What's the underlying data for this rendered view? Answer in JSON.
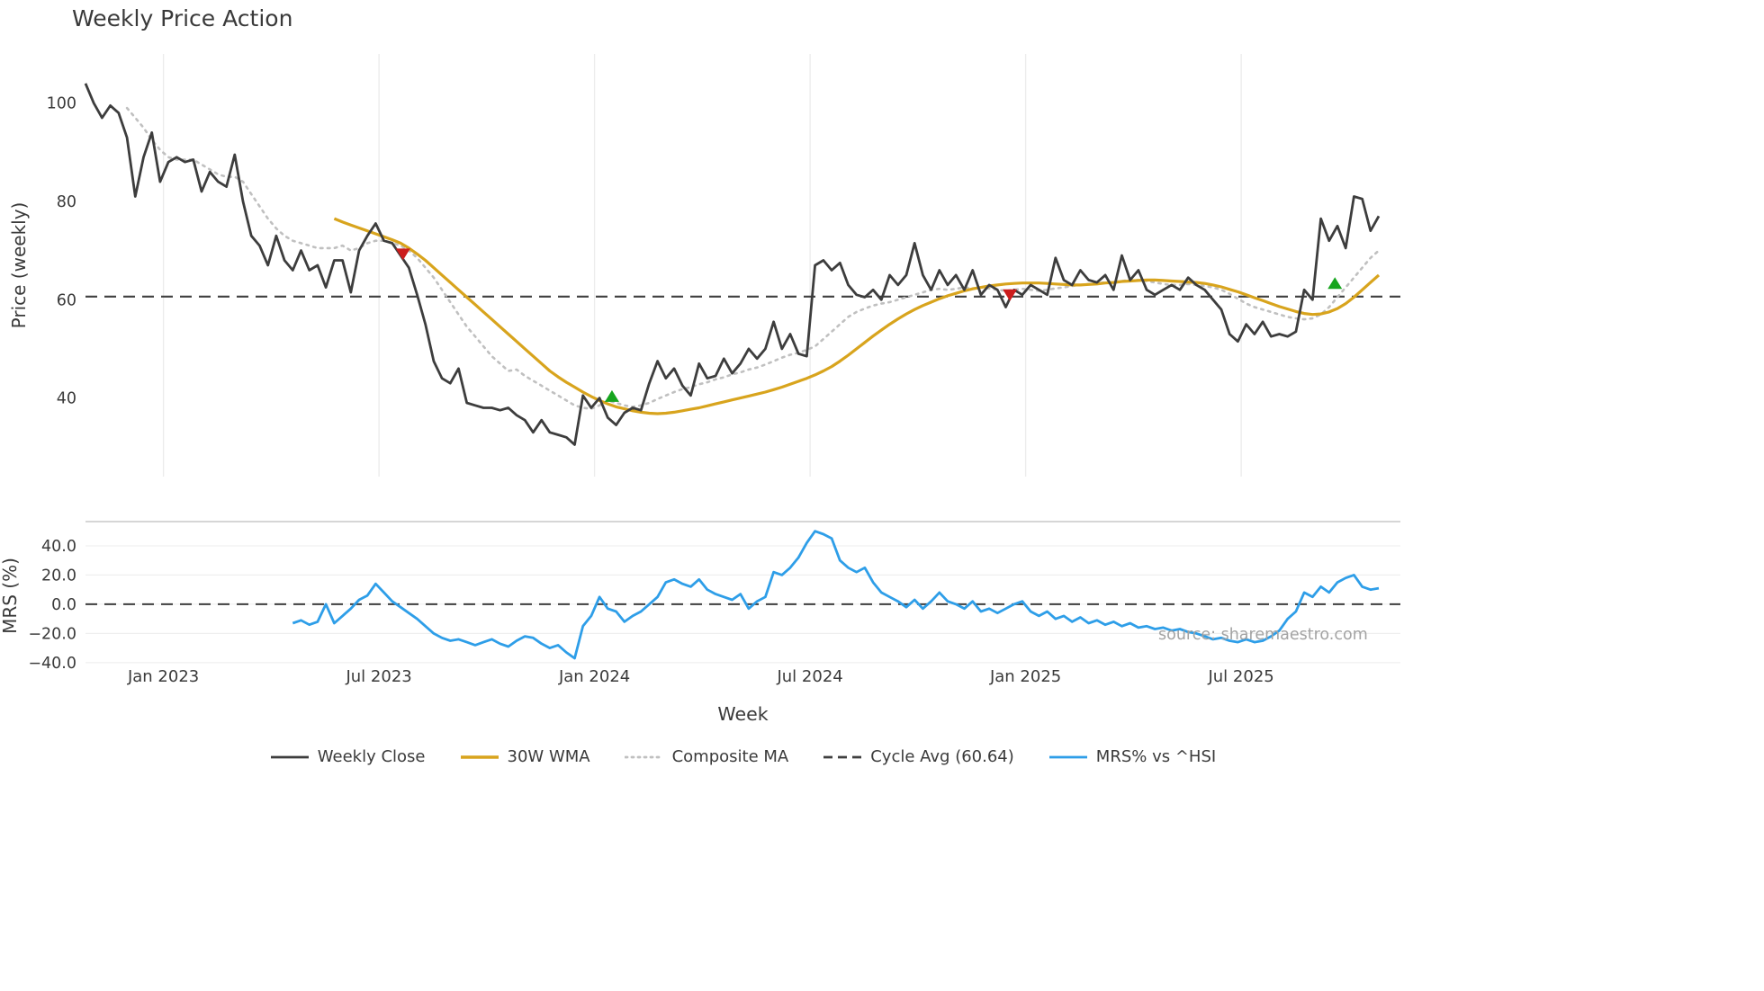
{
  "chart_data": {
    "type": "line",
    "title": "Weekly Price Action",
    "xlabel": "Week",
    "source": "source: sharemaestro.com",
    "xlim": [
      0,
      158.6
    ],
    "x_ticks": [
      {
        "week": 9.4,
        "label": "Jan 2023"
      },
      {
        "week": 35.4,
        "label": "Jul 2023"
      },
      {
        "week": 61.4,
        "label": "Jan 2024"
      },
      {
        "week": 87.4,
        "label": "Jul 2024"
      },
      {
        "week": 113.4,
        "label": "Jan 2025"
      },
      {
        "week": 139.4,
        "label": "Jul 2025"
      }
    ],
    "colors": {
      "close": "#3d3d3d",
      "wma": "#d8a41d",
      "composite": "#c0c0c0",
      "cycle": "#3f3f3f",
      "mrs": "#2e9ee8",
      "buy": "#16a51e",
      "sell": "#cc1c1c",
      "grid": "#ececec",
      "border": "#c9c9c9",
      "text": "#3a3a3a",
      "watermark": "#a3a3a3"
    },
    "price_panel": {
      "ylabel": "Price (weekly)",
      "ylim": [
        24,
        110
      ],
      "yticks": [
        100,
        80,
        60,
        40
      ],
      "cycle_avg": 60.64,
      "series": [
        {
          "name": "Composite MA",
          "key": "composite-ma-line",
          "style": "dotted",
          "color": "#c0c0c0",
          "width": 2.6,
          "start_week": 5,
          "values": [
            99,
            97,
            95,
            92.5,
            90.5,
            89,
            88.5,
            88.5,
            88.5,
            87.5,
            86.5,
            85.5,
            85,
            85,
            84,
            81.5,
            79,
            76.5,
            74.5,
            73,
            72,
            71.5,
            71,
            70.5,
            70.5,
            70.5,
            71,
            70,
            70.5,
            71.5,
            72,
            72,
            71.5,
            71,
            70,
            68.5,
            66.5,
            64.5,
            62,
            59.5,
            57,
            54.5,
            52.5,
            50.5,
            48.5,
            47,
            45.5,
            45.8,
            44.5,
            43.5,
            42.5,
            41.5,
            40.5,
            39.5,
            38.5,
            38,
            37.8,
            38.5,
            39.5,
            39,
            38.5,
            38.2,
            38.5,
            39,
            39.8,
            40.5,
            41.2,
            41.8,
            42.2,
            42.8,
            43.2,
            43.8,
            44.2,
            44.8,
            45.2,
            45.8,
            46.2,
            46.8,
            47.5,
            48.2,
            48.8,
            49.2,
            49.8,
            50.5,
            52,
            53.5,
            55,
            56.5,
            57.5,
            58.2,
            58.8,
            59.2,
            59.5,
            60,
            60.5,
            61,
            61.5,
            62,
            62.2,
            62,
            62.2,
            62.5,
            62.3,
            62.5,
            62.3,
            62,
            61.8,
            62,
            62.2,
            62,
            61.8,
            62,
            62.3,
            62.5,
            62.8,
            63,
            63.2,
            63.4,
            63.5,
            63.6,
            63.8,
            64,
            64,
            63.8,
            63.5,
            63.2,
            63,
            63,
            63.2,
            63,
            62.8,
            62.5,
            62,
            61.2,
            60.2,
            59.2,
            58.5,
            58,
            57.5,
            57,
            56.5,
            56.2,
            56,
            56.2,
            57,
            58.5,
            60.5,
            62.5,
            64.5,
            66.5,
            68.5,
            70
          ]
        },
        {
          "name": "30W WMA",
          "key": "wma-line",
          "style": "solid",
          "color": "#d8a41d",
          "width": 3.2,
          "start_week": 30,
          "values": [
            76.5,
            75.8,
            75.2,
            74.6,
            74,
            73.4,
            72.8,
            72.2,
            71.5,
            70.5,
            69.3,
            68,
            66.5,
            65,
            63.5,
            62,
            60.5,
            59,
            57.5,
            56,
            54.5,
            53,
            51.5,
            50,
            48.5,
            47,
            45.5,
            44.3,
            43.2,
            42.2,
            41.2,
            40.3,
            39.5,
            38.8,
            38.2,
            37.8,
            37.4,
            37.1,
            36.9,
            36.8,
            36.9,
            37.1,
            37.4,
            37.7,
            38,
            38.4,
            38.8,
            39.2,
            39.6,
            40,
            40.4,
            40.8,
            41.2,
            41.7,
            42.2,
            42.8,
            43.4,
            44,
            44.7,
            45.5,
            46.4,
            47.5,
            48.7,
            50,
            51.3,
            52.6,
            53.8,
            55,
            56.1,
            57.1,
            58,
            58.8,
            59.5,
            60.2,
            60.8,
            61.3,
            61.8,
            62.2,
            62.5,
            62.8,
            63,
            63.2,
            63.3,
            63.4,
            63.4,
            63.4,
            63.3,
            63.2,
            63.1,
            63,
            63,
            63.1,
            63.2,
            63.4,
            63.5,
            63.7,
            63.8,
            63.9,
            64,
            64,
            63.9,
            63.8,
            63.7,
            63.6,
            63.5,
            63.3,
            63,
            62.6,
            62.1,
            61.6,
            61,
            60.4,
            59.8,
            59.2,
            58.6,
            58.1,
            57.6,
            57.2,
            57,
            57.1,
            57.5,
            58.2,
            59.2,
            60.5,
            62,
            63.5,
            65
          ]
        },
        {
          "name": "Weekly Close",
          "key": "weekly-close-line",
          "style": "solid",
          "color": "#3d3d3d",
          "width": 2.8,
          "start_week": 0,
          "values": [
            104,
            100,
            97,
            99.5,
            98,
            93,
            81,
            89,
            94,
            84,
            88,
            89,
            88,
            88.5,
            82,
            86,
            84,
            83,
            89.5,
            80,
            73,
            71,
            67,
            73,
            68,
            66,
            70,
            66,
            67,
            62.5,
            68,
            68,
            61.5,
            70,
            73,
            75.5,
            72,
            71.5,
            69,
            66.5,
            61,
            55,
            47.5,
            44,
            43,
            46,
            39,
            38.5,
            38,
            38,
            37.5,
            38,
            36.5,
            35.5,
            33,
            35.5,
            33,
            32.5,
            32,
            30.5,
            40.5,
            38,
            40,
            36,
            34.5,
            37,
            38,
            37.5,
            43,
            47.5,
            44,
            46,
            42.5,
            40.5,
            47,
            44,
            44.5,
            48,
            45,
            47,
            50,
            48,
            50,
            55.5,
            50,
            53,
            49,
            48.5,
            67,
            68,
            66,
            67.5,
            63,
            61,
            60.5,
            62,
            60,
            65,
            63,
            65,
            71.5,
            65,
            62,
            66,
            63,
            65,
            62,
            66,
            61,
            63,
            62,
            58.5,
            62,
            61,
            63,
            62,
            61,
            68.5,
            64,
            63,
            66,
            64,
            63.5,
            65,
            62,
            69,
            64,
            66,
            62,
            61,
            62,
            63,
            62,
            64.5,
            63,
            62,
            60,
            58,
            53,
            51.5,
            55,
            53,
            55.5,
            52.5,
            53,
            52.5,
            53.5,
            62,
            60,
            76.5,
            72,
            75,
            70.5,
            81,
            80.5,
            74,
            77
          ]
        }
      ],
      "buy_signals": [
        {
          "week": 63.5,
          "price": 40.3
        },
        {
          "week": 150.7,
          "price": 63.3
        }
      ],
      "sell_signals": [
        {
          "week": 38.3,
          "price": 69.3
        },
        {
          "week": 111.5,
          "price": 61
        }
      ]
    },
    "mrs_panel": {
      "ylabel": "MRS (%)",
      "ylim": [
        -45,
        56.6
      ],
      "yticks": [
        40,
        20,
        0,
        -20,
        -40
      ],
      "ytick_labels": [
        "40.0",
        "20.0",
        "0.0",
        "−20.0",
        "−40.0"
      ],
      "zero_line": 0,
      "series": [
        {
          "name": "MRS% vs ^HSI",
          "key": "mrs-line",
          "style": "solid",
          "color": "#2e9ee8",
          "width": 2.8,
          "start_week": 25,
          "values": [
            -13,
            -11,
            -14,
            -12,
            0,
            -13,
            -8,
            -3,
            3,
            6,
            14,
            8,
            2,
            -2,
            -6,
            -10,
            -15,
            -20,
            -23,
            -25,
            -24,
            -26,
            -28,
            -26,
            -24,
            -27,
            -29,
            -25,
            -22,
            -23,
            -27,
            -30,
            -28,
            -33,
            -37,
            -15,
            -8,
            5,
            -3,
            -5,
            -12,
            -8,
            -5,
            0,
            5,
            15,
            17,
            14,
            12,
            17,
            10,
            7,
            5,
            3,
            7,
            -3,
            2,
            5,
            22,
            20,
            25,
            32,
            42,
            50,
            48,
            45,
            30,
            25,
            22,
            25,
            15,
            8,
            5,
            2,
            -2,
            3,
            -3,
            2,
            8,
            2,
            0,
            -3,
            2,
            -5,
            -3,
            -6,
            -3,
            0,
            2,
            -5,
            -8,
            -5,
            -10,
            -8,
            -12,
            -9,
            -13,
            -11,
            -14,
            -12,
            -15,
            -13,
            -16,
            -15,
            -17,
            -16,
            -18,
            -17,
            -19,
            -20,
            -22,
            -24,
            -23,
            -25,
            -26,
            -24,
            -26,
            -25,
            -22,
            -18,
            -10,
            -5,
            8,
            5,
            12,
            8,
            15,
            18,
            20,
            12,
            10,
            11
          ]
        }
      ]
    },
    "legend": [
      {
        "label": "Weekly Close",
        "style": "solid",
        "color": "#3d3d3d"
      },
      {
        "label": "30W WMA",
        "style": "solid",
        "color": "#d8a41d"
      },
      {
        "label": "Composite MA",
        "style": "dotted",
        "color": "#c0c0c0"
      },
      {
        "label": "Cycle Avg (60.64)",
        "style": "dashed",
        "color": "#3f3f3f"
      },
      {
        "label": "MRS% vs ^HSI",
        "style": "solid",
        "color": "#2e9ee8"
      }
    ]
  }
}
